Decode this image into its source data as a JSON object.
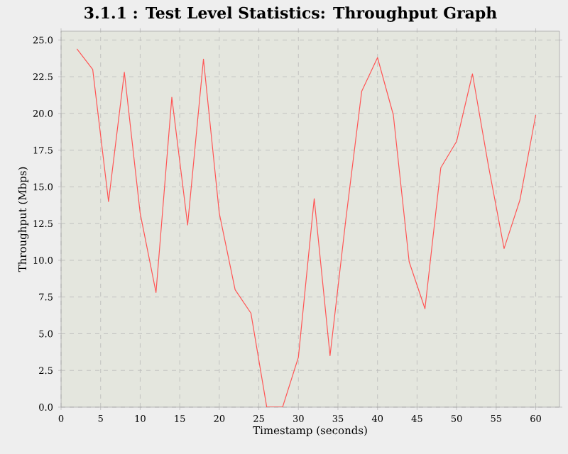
{
  "chart_data": {
    "type": "line",
    "title": "3.1.1 : Test Level Statistics: Throughput Graph",
    "xlabel": "Timestamp (seconds)",
    "ylabel": "Throughput (Mbps)",
    "x": [
      2,
      4,
      6,
      8,
      10,
      12,
      14,
      16,
      18,
      20,
      22,
      24,
      26,
      28,
      30,
      32,
      34,
      36,
      38,
      40,
      42,
      44,
      46,
      48,
      50,
      52,
      54,
      56,
      58,
      60
    ],
    "series": [
      {
        "color": "#ff5555",
        "values": [
          24.4,
          23.0,
          14.0,
          22.8,
          13.2,
          7.8,
          21.1,
          12.4,
          23.7,
          13.2,
          8.0,
          6.4,
          0,
          0,
          3.4,
          14.2,
          3.5,
          12.8,
          21.5,
          23.8,
          19.9,
          9.9,
          6.7,
          16.3,
          18.1,
          22.7,
          16.5,
          10.8,
          14.1,
          19.9
        ]
      }
    ],
    "xlim": [
      0,
      63
    ],
    "ylim": [
      0,
      25.6
    ],
    "xticks": [
      0,
      5,
      10,
      15,
      20,
      25,
      30,
      35,
      40,
      45,
      50,
      55,
      60
    ],
    "yticks": [
      {
        "value": 0,
        "label": "0.0"
      },
      {
        "value": 2.5,
        "label": "2.5"
      },
      {
        "value": 5,
        "label": "5.0"
      },
      {
        "value": 7.5,
        "label": "7.5"
      },
      {
        "value": 10,
        "label": "10.0"
      },
      {
        "value": 12.5,
        "label": "12.5"
      },
      {
        "value": 15,
        "label": "15.0"
      },
      {
        "value": 17.5,
        "label": "17.5"
      },
      {
        "value": 20,
        "label": "20.0"
      },
      {
        "value": 22.5,
        "label": "22.5"
      },
      {
        "value": 25,
        "label": "25.0"
      }
    ],
    "grid": true,
    "marker": "none",
    "line_style": "solid"
  }
}
